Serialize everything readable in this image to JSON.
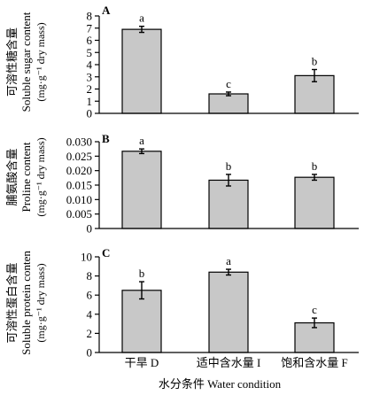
{
  "x_axis": {
    "categories": [
      "干旱 D",
      "适中含水量 I",
      "饱和含水量 F"
    ],
    "title": "水分条件 Water condition"
  },
  "chart_data": [
    {
      "type": "bar",
      "panel": "A",
      "categories": [
        "干旱 D",
        "适中含水量 I",
        "饱和含水量 F"
      ],
      "values": [
        6.9,
        1.6,
        3.1
      ],
      "errors": [
        0.25,
        0.15,
        0.5
      ],
      "letters": [
        "a",
        "c",
        "b"
      ],
      "ylabel_cn": "可溶性糖含量",
      "ylabel_en": "Soluble sugar content",
      "ylabel_unit": "(mg·g⁻¹ dry mass)",
      "ylim": [
        0,
        8
      ],
      "yticks": [
        0,
        1,
        2,
        3,
        4,
        5,
        6,
        7,
        8
      ],
      "ytick_labels": [
        "0",
        "1",
        "2",
        "3",
        "4",
        "5",
        "6",
        "7",
        "8"
      ]
    },
    {
      "type": "bar",
      "panel": "B",
      "categories": [
        "干旱 D",
        "适中含水量 I",
        "饱和含水量 F"
      ],
      "values": [
        0.0267,
        0.0167,
        0.0177
      ],
      "errors": [
        0.0008,
        0.002,
        0.001
      ],
      "letters": [
        "a",
        "b",
        "b"
      ],
      "ylabel_cn": "脯氨酸含量",
      "ylabel_en": "Proline content",
      "ylabel_unit": "(mg·g⁻¹ dry mass)",
      "ylim": [
        0,
        0.03
      ],
      "yticks": [
        0,
        0.005,
        0.01,
        0.015,
        0.02,
        0.025,
        0.03
      ],
      "ytick_labels": [
        "0",
        "0.005",
        "0.010",
        "0.015",
        "0.020",
        "0.025",
        "0.030"
      ]
    },
    {
      "type": "bar",
      "panel": "C",
      "categories": [
        "干旱 D",
        "适中含水量 I",
        "饱和含水量 F"
      ],
      "values": [
        6.5,
        8.4,
        3.1
      ],
      "errors": [
        0.9,
        0.3,
        0.5
      ],
      "letters": [
        "b",
        "a",
        "c"
      ],
      "ylabel_cn": "可溶性蛋白含量",
      "ylabel_en": "Soluble protein conten",
      "ylabel_unit": "(mg·g⁻¹ dry mass)",
      "ylim": [
        0,
        10
      ],
      "yticks": [
        0,
        2,
        4,
        6,
        8,
        10
      ],
      "ytick_labels": [
        "0",
        "2",
        "4",
        "6",
        "8",
        "10"
      ]
    }
  ]
}
